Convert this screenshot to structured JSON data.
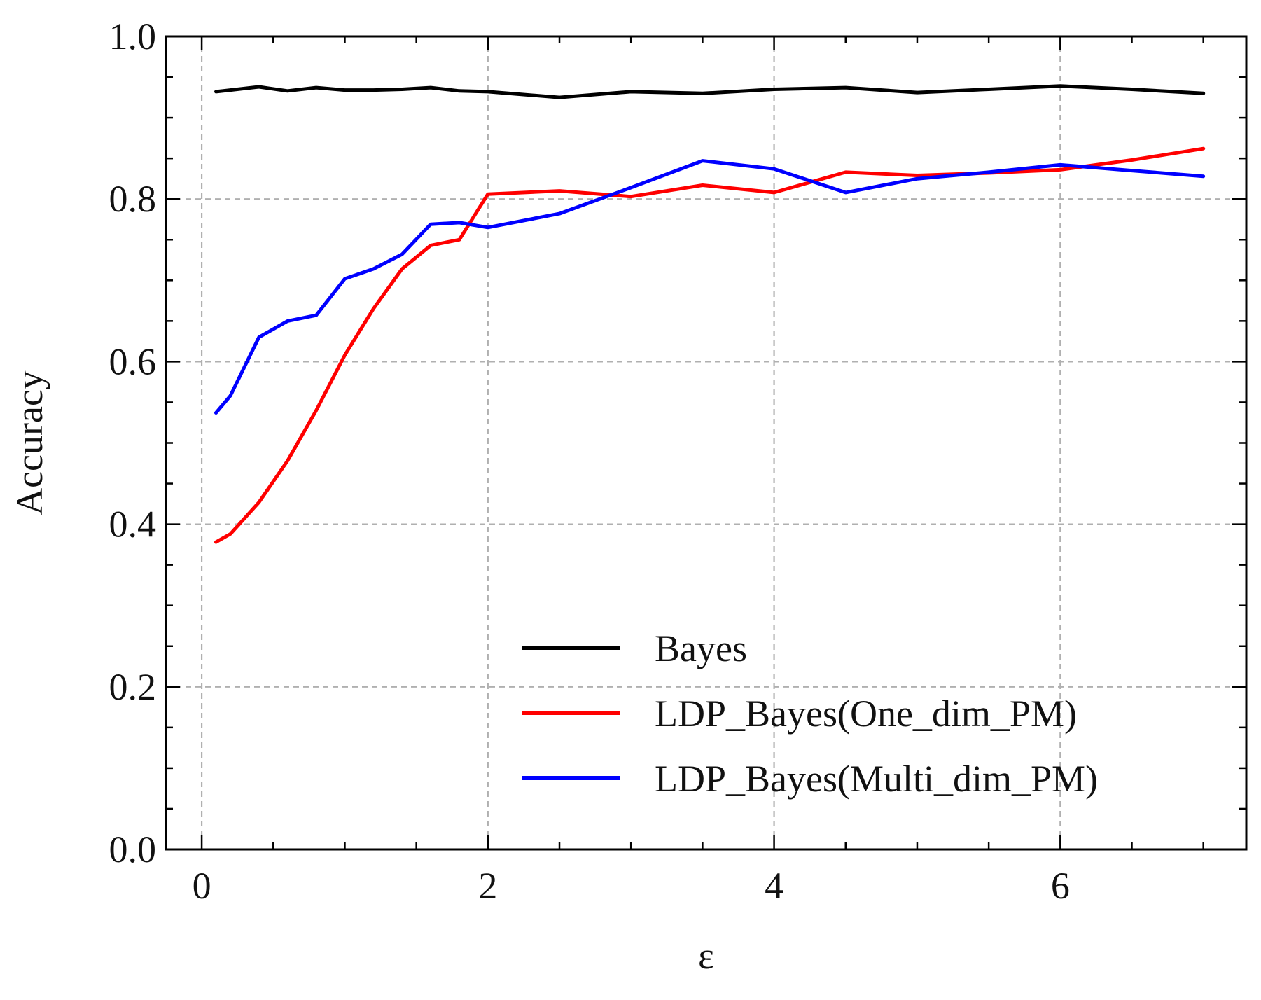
{
  "chart_data": {
    "type": "line",
    "title": "",
    "xlabel": "ε",
    "ylabel": "Accuracy",
    "xlim": [
      -0.25,
      7.3
    ],
    "ylim": [
      0.0,
      1.0
    ],
    "xticks": [
      0,
      2,
      4,
      6
    ],
    "xtick_labels": [
      "0",
      "2",
      "4",
      "6"
    ],
    "yticks": [
      0.0,
      0.2,
      0.4,
      0.6,
      0.8,
      1.0
    ],
    "ytick_labels": [
      "0.0",
      "0.2",
      "0.4",
      "0.6",
      "0.8",
      "1.0"
    ],
    "x_minor_step": 0.5,
    "y_minor_step": 0.05,
    "grid": true,
    "legend": "lower-right",
    "series": [
      {
        "name": "Bayes",
        "color": "#000000",
        "x": [
          0.1,
          0.2,
          0.4,
          0.6,
          0.8,
          1.0,
          1.2,
          1.4,
          1.6,
          1.8,
          2.0,
          2.5,
          3.0,
          3.5,
          4.0,
          4.5,
          5.0,
          5.5,
          6.0,
          6.5,
          7.0
        ],
        "values": [
          0.932,
          0.934,
          0.938,
          0.933,
          0.937,
          0.934,
          0.934,
          0.935,
          0.937,
          0.933,
          0.932,
          0.925,
          0.932,
          0.93,
          0.935,
          0.937,
          0.931,
          0.935,
          0.939,
          0.935,
          0.93
        ]
      },
      {
        "name": "LDP_Bayes(One_dim_PM)",
        "color": "#ff0000",
        "x": [
          0.1,
          0.2,
          0.4,
          0.6,
          0.8,
          1.0,
          1.2,
          1.4,
          1.6,
          1.8,
          2.0,
          2.5,
          3.0,
          3.5,
          4.0,
          4.5,
          5.0,
          5.5,
          6.0,
          6.5,
          7.0
        ],
        "values": [
          0.378,
          0.388,
          0.427,
          0.478,
          0.54,
          0.608,
          0.665,
          0.714,
          0.743,
          0.75,
          0.806,
          0.81,
          0.803,
          0.817,
          0.808,
          0.833,
          0.829,
          0.832,
          0.836,
          0.848,
          0.862
        ]
      },
      {
        "name": "LDP_Bayes(Multi_dim_PM)",
        "color": "#0000ff",
        "x": [
          0.1,
          0.2,
          0.4,
          0.6,
          0.8,
          1.0,
          1.2,
          1.4,
          1.6,
          1.8,
          2.0,
          2.5,
          3.0,
          3.5,
          4.0,
          4.5,
          5.0,
          5.5,
          6.0,
          6.5,
          7.0
        ],
        "values": [
          0.537,
          0.558,
          0.63,
          0.65,
          0.657,
          0.702,
          0.714,
          0.732,
          0.769,
          0.771,
          0.765,
          0.782,
          0.814,
          0.847,
          0.837,
          0.808,
          0.825,
          0.833,
          0.842,
          0.835,
          0.828
        ]
      }
    ]
  }
}
